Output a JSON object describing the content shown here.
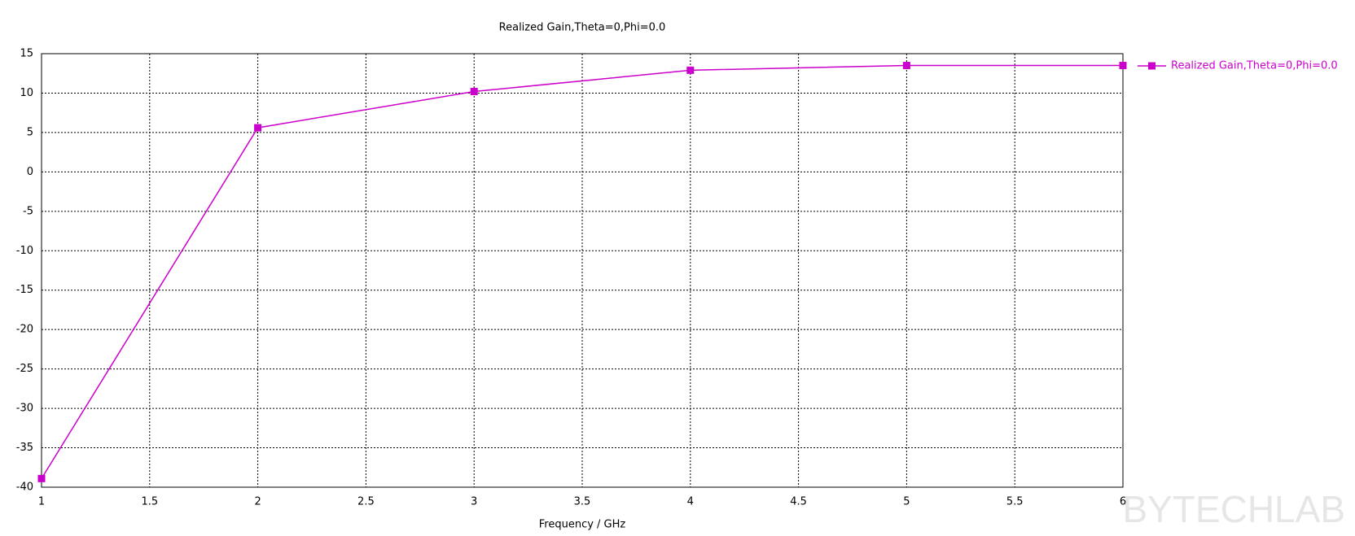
{
  "chart_data": {
    "type": "line",
    "title": "Realized Gain,Theta=0,Phi=0.0",
    "x_label": "Frequency / GHz",
    "x": [
      1,
      2,
      3,
      4,
      5,
      6
    ],
    "series": [
      {
        "name": "Realized Gain,Theta=0,Phi=0.0",
        "color": "#cc00cc",
        "values": [
          -38.9,
          5.6,
          10.2,
          12.9,
          13.5,
          13.5
        ]
      }
    ],
    "xlim": [
      1,
      6
    ],
    "xticks": [
      1,
      1.5,
      2,
      2.5,
      3,
      3.5,
      4,
      4.5,
      5,
      5.5,
      6
    ],
    "ylim": [
      -40,
      15
    ],
    "yticks": [
      -40,
      -35,
      -30,
      -25,
      -20,
      -15,
      -10,
      -5,
      0,
      5,
      10,
      15
    ],
    "grid": true,
    "legend": "right",
    "watermark": "BYTECHLAB"
  }
}
